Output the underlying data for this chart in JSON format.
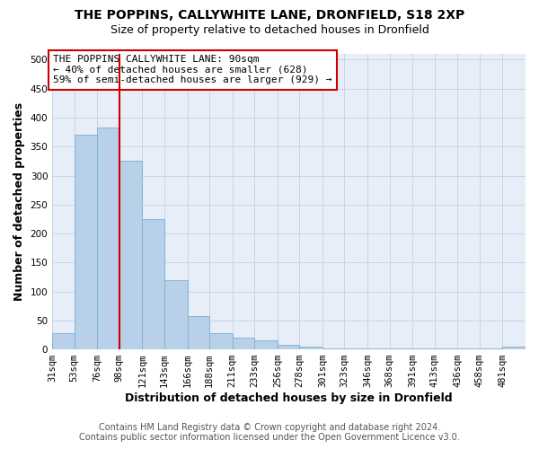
{
  "title": "THE POPPINS, CALLYWHITE LANE, DRONFIELD, S18 2XP",
  "subtitle": "Size of property relative to detached houses in Dronfield",
  "xlabel": "Distribution of detached houses by size in Dronfield",
  "ylabel": "Number of detached properties",
  "footer_line1": "Contains HM Land Registry data © Crown copyright and database right 2024.",
  "footer_line2": "Contains public sector information licensed under the Open Government Licence v3.0.",
  "bins": [
    "31sqm",
    "53sqm",
    "76sqm",
    "98sqm",
    "121sqm",
    "143sqm",
    "166sqm",
    "188sqm",
    "211sqm",
    "233sqm",
    "256sqm",
    "278sqm",
    "301sqm",
    "323sqm",
    "346sqm",
    "368sqm",
    "391sqm",
    "413sqm",
    "436sqm",
    "458sqm",
    "481sqm"
  ],
  "bin_edges": [
    31,
    53,
    76,
    98,
    121,
    143,
    166,
    188,
    211,
    233,
    256,
    278,
    301,
    323,
    346,
    368,
    391,
    413,
    436,
    458,
    481
  ],
  "values": [
    28,
    370,
    383,
    325,
    225,
    120,
    58,
    28,
    20,
    16,
    8,
    5,
    2,
    2,
    2,
    2,
    2,
    2,
    2,
    2,
    5
  ],
  "bar_color": "#b8d0e8",
  "bar_edge_color": "#7aafd4",
  "grid_color": "#c8d4e8",
  "property_line_x": 98,
  "property_line_color": "#cc0000",
  "annotation_line1": "THE POPPINS CALLYWHITE LANE: 90sqm",
  "annotation_line2": "← 40% of detached houses are smaller (628)",
  "annotation_line3": "59% of semi-detached houses are larger (929) →",
  "annotation_box_color": "#ffffff",
  "annotation_box_edge": "#cc0000",
  "ylim": [
    0,
    510
  ],
  "yticks": [
    0,
    50,
    100,
    150,
    200,
    250,
    300,
    350,
    400,
    450,
    500
  ],
  "background_color": "#e8eef8",
  "plot_bg_color": "#e8eef8",
  "title_fontsize": 10,
  "subtitle_fontsize": 9,
  "axis_label_fontsize": 9,
  "tick_fontsize": 7.5,
  "annotation_fontsize": 8,
  "footer_fontsize": 7
}
